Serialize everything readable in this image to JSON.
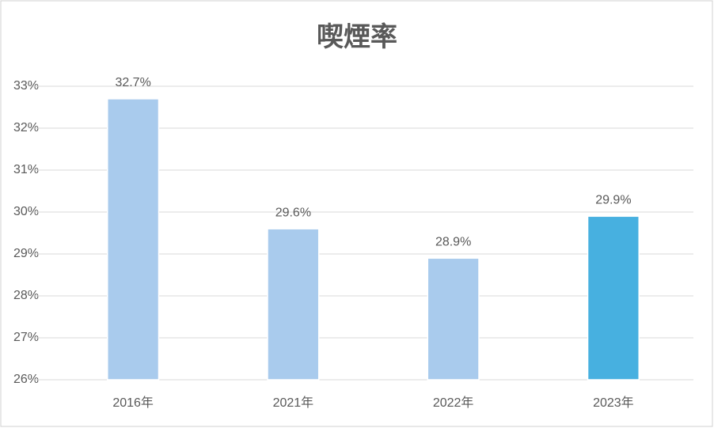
{
  "chart_data": {
    "type": "bar",
    "title": "喫煙率",
    "categories": [
      "2016年",
      "2021年",
      "2022年",
      "2023年"
    ],
    "values": [
      32.7,
      29.6,
      28.9,
      29.9
    ],
    "value_labels": [
      "32.7%",
      "29.6%",
      "28.9%",
      "29.9%"
    ],
    "colors": [
      "#a9cbed",
      "#a9cbed",
      "#a9cbed",
      "#47b0e0"
    ],
    "ylim": [
      26,
      33
    ],
    "yticks": [
      {
        "value": 26,
        "label": "26%"
      },
      {
        "value": 27,
        "label": "27%"
      },
      {
        "value": 28,
        "label": "28%"
      },
      {
        "value": 29,
        "label": "29%"
      },
      {
        "value": 30,
        "label": "30%"
      },
      {
        "value": 31,
        "label": "31%"
      },
      {
        "value": 32,
        "label": "32%"
      },
      {
        "value": 33,
        "label": "33%"
      }
    ],
    "grid": true
  }
}
